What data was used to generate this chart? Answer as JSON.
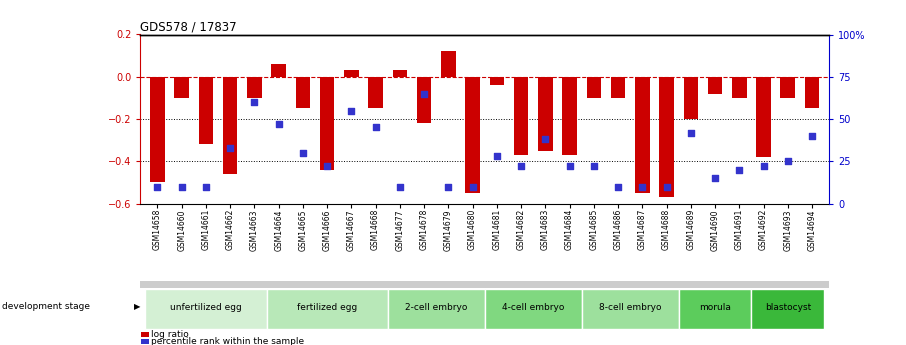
{
  "title": "GDS578 / 17837",
  "samples": [
    "GSM14658",
    "GSM14660",
    "GSM14661",
    "GSM14662",
    "GSM14663",
    "GSM14664",
    "GSM14665",
    "GSM14666",
    "GSM14667",
    "GSM14668",
    "GSM14677",
    "GSM14678",
    "GSM14679",
    "GSM14680",
    "GSM14681",
    "GSM14682",
    "GSM14683",
    "GSM14684",
    "GSM14685",
    "GSM14686",
    "GSM14687",
    "GSM14688",
    "GSM14689",
    "GSM14690",
    "GSM14691",
    "GSM14692",
    "GSM14693",
    "GSM14694"
  ],
  "log_ratio": [
    -0.5,
    -0.1,
    -0.32,
    -0.46,
    -0.1,
    0.06,
    -0.15,
    -0.44,
    0.03,
    -0.15,
    0.03,
    -0.22,
    0.12,
    -0.55,
    -0.04,
    -0.37,
    -0.35,
    -0.37,
    -0.1,
    -0.1,
    -0.55,
    -0.57,
    -0.2,
    -0.08,
    -0.1,
    -0.38,
    -0.1,
    -0.15
  ],
  "percentile": [
    10,
    10,
    10,
    33,
    60,
    47,
    30,
    22,
    55,
    45,
    10,
    65,
    10,
    10,
    28,
    22,
    38,
    22,
    22,
    10,
    10,
    10,
    42,
    15,
    20,
    22,
    25,
    40
  ],
  "stage_groups": [
    {
      "label": "unfertilized egg",
      "start": 0,
      "end": 5,
      "color": "#d4f0d4"
    },
    {
      "label": "fertilized egg",
      "start": 5,
      "end": 10,
      "color": "#b8e8b8"
    },
    {
      "label": "2-cell embryo",
      "start": 10,
      "end": 14,
      "color": "#9de09d"
    },
    {
      "label": "4-cell embryo",
      "start": 14,
      "end": 18,
      "color": "#80d880"
    },
    {
      "label": "8-cell embryo",
      "start": 18,
      "end": 22,
      "color": "#9de09d"
    },
    {
      "label": "morula",
      "start": 22,
      "end": 25,
      "color": "#5ccc5c"
    },
    {
      "label": "blastocyst",
      "start": 25,
      "end": 28,
      "color": "#3ab83a"
    }
  ],
  "ylim_left": [
    -0.6,
    0.2
  ],
  "ylim_right": [
    0,
    100
  ],
  "bar_color": "#cc0000",
  "dot_color": "#3333cc",
  "hline_color": "#cc0000",
  "grid_color": "#000000",
  "bg_color": "#ffffff",
  "left_yticks": [
    -0.6,
    -0.4,
    -0.2,
    0.0,
    0.2
  ],
  "right_yticks": [
    0,
    25,
    50,
    75,
    100
  ],
  "right_yticklabels": [
    "0",
    "25",
    "50",
    "75",
    "100%"
  ]
}
